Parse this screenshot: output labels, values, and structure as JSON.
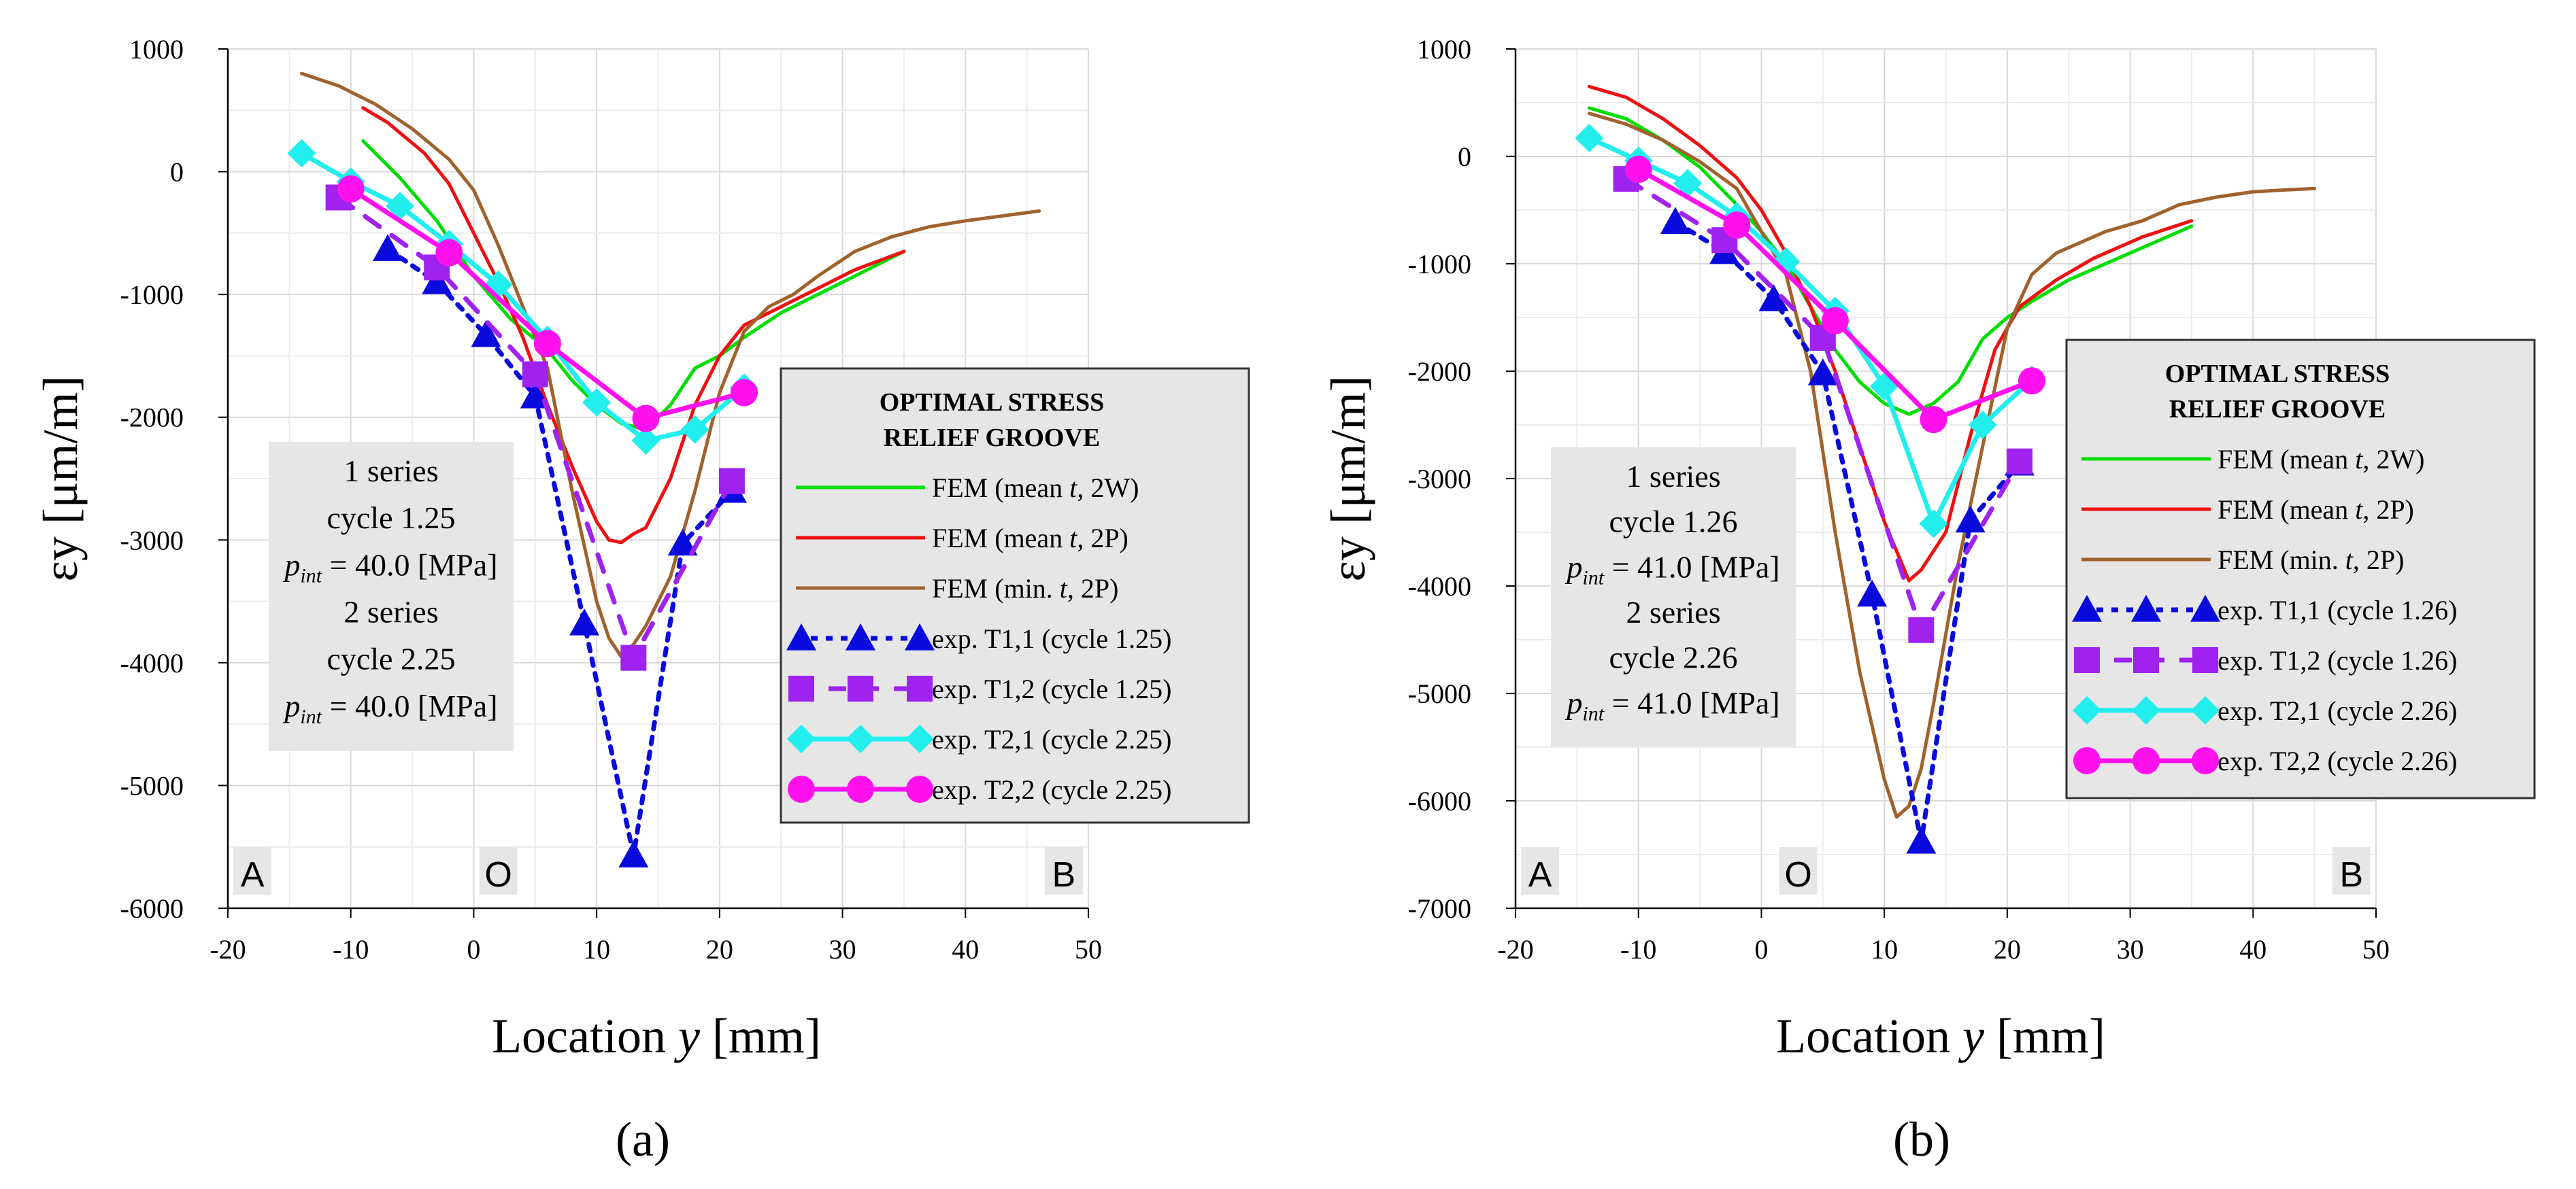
{
  "figure": {
    "panels": [
      "(a)",
      "(b)"
    ]
  },
  "chart_data": [
    {
      "type": "line",
      "panel_label": "(a)",
      "xlabel": "Location y [mm]",
      "ylabel": "εy [μm/m]",
      "xlim": [
        -20,
        50
      ],
      "ylim": [
        -6000,
        1000
      ],
      "xticks": [
        -20,
        -10,
        0,
        10,
        20,
        30,
        40,
        50
      ],
      "yticks": [
        1000,
        0,
        -1000,
        -2000,
        -3000,
        -4000,
        -5000,
        -6000
      ],
      "grid": true,
      "legend_title": [
        "OPTIMAL STRESS",
        "RELIEF GROOVE"
      ],
      "legend_position": "right",
      "info_box": [
        "1 series",
        "cycle 1.25",
        "p_int = 40.0 [MPa]",
        "2 series",
        "cycle 2.25",
        "p_int = 40.0 [MPa]"
      ],
      "info_box_position": "left",
      "corner_labels": [
        {
          "text": "A",
          "x": -18
        },
        {
          "text": "O",
          "x": 2
        },
        {
          "text": "B",
          "x": 48
        }
      ],
      "series": [
        {
          "name": "FEM (mean t, 2W)",
          "color": "#00dd00",
          "style": "solid",
          "x": [
            -9,
            -6,
            -3,
            0,
            3,
            6,
            8,
            10,
            12,
            14,
            16,
            18,
            20,
            22,
            25,
            28,
            31,
            35
          ],
          "y": [
            250,
            -50,
            -400,
            -850,
            -1200,
            -1450,
            -1700,
            -1900,
            -2050,
            -2100,
            -1900,
            -1600,
            -1500,
            -1350,
            -1150,
            -1000,
            -850,
            -650
          ]
        },
        {
          "name": "FEM (mean t, 2P)",
          "color": "#ee1111",
          "style": "solid",
          "x": [
            -9,
            -7,
            -4,
            -2,
            0,
            2,
            4,
            6,
            8,
            10,
            11,
            12,
            13,
            14,
            16,
            18,
            20,
            22,
            25,
            28,
            31,
            35
          ],
          "y": [
            520,
            400,
            150,
            -100,
            -500,
            -900,
            -1350,
            -1900,
            -2400,
            -2850,
            -3000,
            -3020,
            -2950,
            -2900,
            -2500,
            -1900,
            -1500,
            -1250,
            -1100,
            -950,
            -800,
            -650
          ]
        },
        {
          "name": "FEM (min. t, 2P)",
          "color": "#a0622d",
          "style": "solid",
          "x": [
            -14,
            -11,
            -8,
            -5,
            -2,
            0,
            2,
            4,
            6,
            8,
            10,
            11,
            12,
            13,
            14,
            16,
            18,
            20,
            22,
            24,
            26,
            28,
            31,
            34,
            37,
            40,
            43,
            46
          ],
          "y": [
            800,
            700,
            550,
            350,
            100,
            -150,
            -600,
            -1100,
            -1600,
            -2600,
            -3500,
            -3800,
            -3950,
            -3850,
            -3700,
            -3300,
            -2600,
            -1800,
            -1300,
            -1100,
            -1000,
            -850,
            -650,
            -530,
            -450,
            -400,
            -360,
            -320
          ]
        },
        {
          "name": "exp. T1,1 (cycle 1.25)",
          "color": "#0a0add",
          "style": "dotted",
          "marker": "triangle",
          "x": [
            -7,
            -3,
            1,
            5,
            9,
            13,
            17,
            21
          ],
          "y": [
            -630,
            -900,
            -1330,
            -1830,
            -3680,
            -5570,
            -3030,
            -2600
          ]
        },
        {
          "name": "exp. T1,2 (cycle 1.25)",
          "color": "#9f22ef",
          "style": "dashed",
          "marker": "square",
          "x": [
            -11,
            -3,
            5,
            13,
            21
          ],
          "y": [
            -210,
            -780,
            -1650,
            -3960,
            -2520
          ]
        },
        {
          "name": "exp. T2,1 (cycle 2.25)",
          "color": "#22eeee",
          "style": "solid",
          "marker": "diamond",
          "x": [
            -14,
            -10,
            -6,
            -2,
            2,
            6,
            10,
            14,
            18,
            22
          ],
          "y": [
            150,
            -80,
            -280,
            -590,
            -920,
            -1370,
            -1880,
            -2190,
            -2100,
            -1760
          ]
        },
        {
          "name": "exp. T2,2 (cycle 2.25)",
          "color": "#ff11ee",
          "style": "solid",
          "marker": "circle",
          "x": [
            -10,
            -2,
            6,
            14,
            22
          ],
          "y": [
            -140,
            -660,
            -1400,
            -2010,
            -1800
          ]
        }
      ]
    },
    {
      "type": "line",
      "panel_label": "(b)",
      "xlabel": "Location y [mm]",
      "ylabel": "εy [μm/m]",
      "xlim": [
        -20,
        50
      ],
      "ylim": [
        -7000,
        1000
      ],
      "xticks": [
        -20,
        -10,
        0,
        10,
        20,
        30,
        40,
        50
      ],
      "yticks": [
        1000,
        0,
        -1000,
        -2000,
        -3000,
        -4000,
        -5000,
        -6000,
        -7000
      ],
      "grid": true,
      "legend_title": [
        "OPTIMAL STRESS",
        "RELIEF GROOVE"
      ],
      "legend_position": "right",
      "info_box": [
        "1 series",
        "cycle 1.26",
        "p_int = 41.0 [MPa]",
        "2 series",
        "cycle 2.26",
        "p_int = 41.0 [MPa]"
      ],
      "info_box_position": "left",
      "corner_labels": [
        {
          "text": "A",
          "x": -18
        },
        {
          "text": "O",
          "x": 3
        },
        {
          "text": "B",
          "x": 48
        }
      ],
      "series": [
        {
          "name": "FEM (mean t, 2W)",
          "color": "#00dd00",
          "style": "solid",
          "x": [
            -14,
            -11,
            -8,
            -5,
            -2,
            0,
            2,
            4,
            6,
            8,
            10,
            12,
            14,
            16,
            18,
            20,
            22,
            25,
            28,
            31,
            35
          ],
          "y": [
            450,
            350,
            150,
            -100,
            -450,
            -700,
            -1000,
            -1400,
            -1800,
            -2100,
            -2300,
            -2400,
            -2300,
            -2100,
            -1700,
            -1500,
            -1350,
            -1150,
            -1000,
            -850,
            -650
          ]
        },
        {
          "name": "FEM (mean t, 2P)",
          "color": "#ee1111",
          "style": "solid",
          "x": [
            -14,
            -11,
            -8,
            -5,
            -2,
            0,
            2,
            4,
            6,
            8,
            10,
            12,
            13,
            15,
            17,
            19,
            21,
            24,
            27,
            31,
            35
          ],
          "y": [
            650,
            550,
            350,
            100,
            -200,
            -500,
            -900,
            -1400,
            -2000,
            -2700,
            -3400,
            -3950,
            -3850,
            -3500,
            -2600,
            -1800,
            -1400,
            -1150,
            -950,
            -750,
            -600
          ]
        },
        {
          "name": "FEM (min. t, 2P)",
          "color": "#a0622d",
          "style": "solid",
          "x": [
            -14,
            -11,
            -8,
            -5,
            -2,
            0,
            2,
            4,
            6,
            8,
            10,
            11,
            12,
            13,
            14,
            16,
            18,
            20,
            22,
            24,
            26,
            28,
            31,
            34,
            37,
            40,
            43,
            45
          ],
          "y": [
            400,
            300,
            150,
            -50,
            -300,
            -700,
            -1100,
            -2000,
            -3500,
            -4800,
            -5800,
            -6150,
            -6050,
            -5700,
            -5100,
            -3800,
            -2700,
            -1600,
            -1100,
            -900,
            -800,
            -700,
            -600,
            -450,
            -380,
            -330,
            -310,
            -300
          ]
        },
        {
          "name": "exp. T1,1 (cycle 1.26)",
          "color": "#0a0add",
          "style": "dotted",
          "marker": "triangle",
          "x": [
            -7,
            -3,
            1,
            5,
            9,
            13,
            17,
            21
          ],
          "y": [
            -610,
            -890,
            -1330,
            -2020,
            -4080,
            -6380,
            -3390,
            -2860
          ]
        },
        {
          "name": "exp. T1,2 (cycle 1.26)",
          "color": "#9f22ef",
          "style": "dashed",
          "marker": "square",
          "x": [
            -11,
            -3,
            5,
            13,
            21
          ],
          "y": [
            -210,
            -780,
            -1690,
            -4410,
            -2840
          ]
        },
        {
          "name": "exp. T2,1 (cycle 2.26)",
          "color": "#22eeee",
          "style": "solid",
          "marker": "diamond",
          "x": [
            -14,
            -10,
            -6,
            -2,
            2,
            6,
            10,
            14,
            18,
            22
          ],
          "y": [
            170,
            -40,
            -250,
            -560,
            -980,
            -1440,
            -2140,
            -3420,
            -2500,
            -2080
          ]
        },
        {
          "name": "exp. T2,2 (cycle 2.26)",
          "color": "#ff11ee",
          "style": "solid",
          "marker": "circle",
          "x": [
            -10,
            -2,
            6,
            14,
            22
          ],
          "y": [
            -120,
            -640,
            -1530,
            -2450,
            -2090
          ]
        }
      ]
    }
  ]
}
